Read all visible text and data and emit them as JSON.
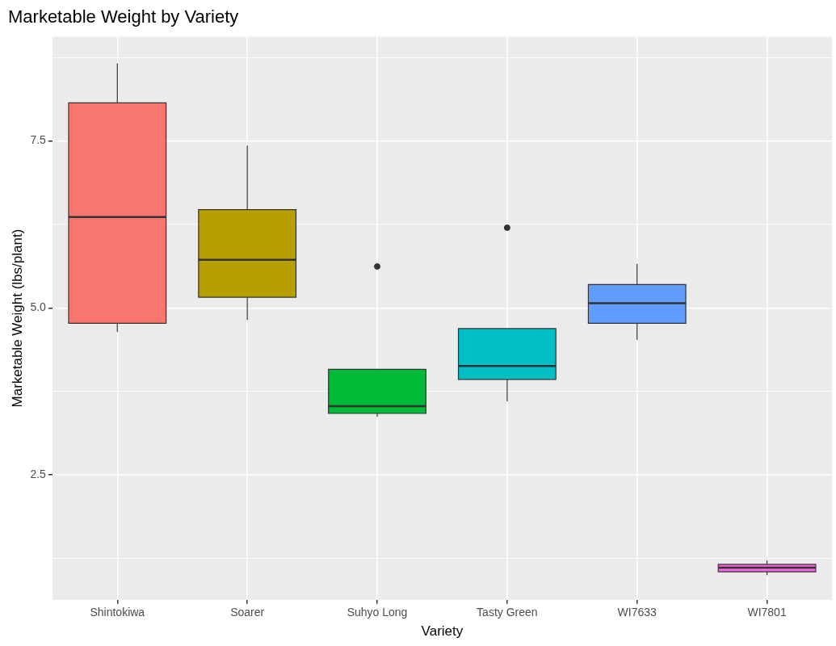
{
  "chart_data": {
    "type": "box",
    "title": "Marketable Weight by Variety",
    "xlabel": "Variety",
    "ylabel": "Marketable Weight (lbs/plant)",
    "categories": [
      "Shintokiwa",
      "Soarer",
      "Suhyo Long",
      "Tasty Green",
      "WI7633",
      "WI7801"
    ],
    "colors": [
      "#f8766d",
      "#b79f00",
      "#00ba38",
      "#00bfc4",
      "#619cff",
      "#f564e3"
    ],
    "boxes": [
      {
        "low": 4.64,
        "q1": 4.77,
        "median": 6.36,
        "q3": 8.07,
        "high": 8.66
      },
      {
        "low": 4.82,
        "q1": 5.16,
        "median": 5.72,
        "q3": 6.47,
        "high": 7.43
      },
      {
        "low": 3.37,
        "q1": 3.42,
        "median": 3.53,
        "q3": 4.08,
        "high": 4.08,
        "outliers": [
          5.62
        ]
      },
      {
        "low": 3.6,
        "q1": 3.93,
        "median": 4.13,
        "q3": 4.69,
        "high": 4.69,
        "outliers": [
          6.2
        ]
      },
      {
        "low": 4.52,
        "q1": 4.77,
        "median": 5.07,
        "q3": 5.35,
        "high": 5.66
      },
      {
        "low": 1.0,
        "q1": 1.05,
        "median": 1.11,
        "q3": 1.16,
        "high": 1.22
      }
    ],
    "ylim": [
      0.63,
      9.06
    ],
    "yticks": [
      {
        "value": 1.25,
        "label": null
      },
      {
        "value": 2.5,
        "label": "2.5"
      },
      {
        "value": 3.75,
        "label": null
      },
      {
        "value": 5,
        "label": "5.0"
      },
      {
        "value": 6.25,
        "label": null
      },
      {
        "value": 7.5,
        "label": "7.5"
      },
      {
        "value": 8.75,
        "label": null
      }
    ],
    "grid": true
  }
}
